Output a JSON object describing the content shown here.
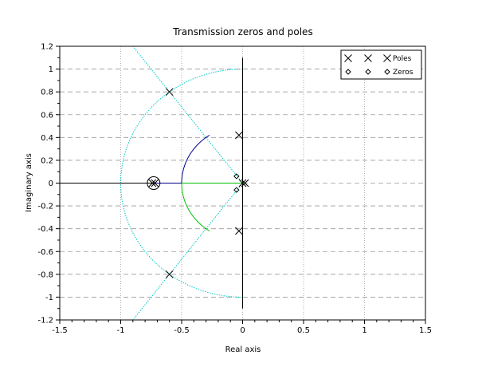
{
  "chart_data": {
    "type": "scatter",
    "title": "Transmission zeros and poles",
    "xlabel": "Real axis",
    "ylabel": "Imaginary axis",
    "xlim": [
      -1.5,
      1.5
    ],
    "ylim": [
      -1.2,
      1.2
    ],
    "x_ticks": [
      "-1.5",
      "-1",
      "-0.5",
      "0",
      "0.5",
      "1",
      "1.5"
    ],
    "x_tick_values": [
      -1.5,
      -1,
      -0.5,
      0,
      0.5,
      1,
      1.5
    ],
    "y_ticks": [
      "-1.2",
      "-1",
      "-0.8",
      "-0.6",
      "-0.4",
      "-0.2",
      "0",
      "0.2",
      "0.4",
      "0.6",
      "0.8",
      "1",
      "1.2"
    ],
    "y_tick_values": [
      -1.2,
      -1,
      -0.8,
      -0.6,
      -0.4,
      -0.2,
      0,
      0.2,
      0.4,
      0.6,
      0.8,
      1,
      1.2
    ],
    "grid": true,
    "legend_position": "top-right",
    "legend": [
      {
        "label": "Poles",
        "marker": "x"
      },
      {
        "label": "Zeros",
        "marker": "diamond"
      }
    ],
    "poles": [
      {
        "re": -0.6,
        "im": 0.8
      },
      {
        "re": -0.6,
        "im": -0.8
      },
      {
        "re": -0.03,
        "im": 0.42
      },
      {
        "re": -0.03,
        "im": -0.42
      },
      {
        "re": -0.74,
        "im": 0.0
      },
      {
        "re": -0.72,
        "im": 0.0
      },
      {
        "re": 0.0,
        "im": 0.0
      },
      {
        "re": 0.02,
        "im": 0.0
      }
    ],
    "zeros": [
      {
        "re": -0.05,
        "im": 0.06
      },
      {
        "re": -0.05,
        "im": -0.06
      },
      {
        "re": -0.73,
        "im": 0.0
      }
    ],
    "root_locus": {
      "blue_arc": {
        "center": [
          0,
          0
        ],
        "radius": 0.5,
        "from_deg": 90,
        "to_deg": 180,
        "end_im": 0.42,
        "color": "#00008b"
      },
      "green_arc": {
        "center": [
          0,
          0
        ],
        "radius": 0.5,
        "from_deg": 180,
        "to_deg": 270,
        "end_im": -0.42,
        "color": "#00c000"
      },
      "green_segment": {
        "from": [
          -0.5,
          0
        ],
        "to": [
          0,
          0
        ],
        "color": "#00c000"
      },
      "blue_segment": {
        "from": [
          -0.72,
          0
        ],
        "to": [
          -0.5,
          0
        ],
        "color": "#00008b"
      },
      "black_real_segment": {
        "from": [
          -1.5,
          0
        ],
        "to": [
          -0.72,
          0
        ],
        "color": "#000000"
      },
      "black_vertical": {
        "re": 0,
        "from_im": -1.1,
        "to_im": 1.1,
        "color": "#000000"
      },
      "cyan_circle": {
        "center": [
          0,
          0
        ],
        "radius": 1.0,
        "from_deg": 90,
        "to_deg": 270,
        "color": "#00c8c8"
      },
      "cyan_rays": [
        {
          "from": [
            0,
            0
          ],
          "to": [
            -0.9,
            1.2
          ]
        },
        {
          "from": [
            0,
            0
          ],
          "to": [
            -0.9,
            -1.2
          ]
        }
      ]
    }
  }
}
